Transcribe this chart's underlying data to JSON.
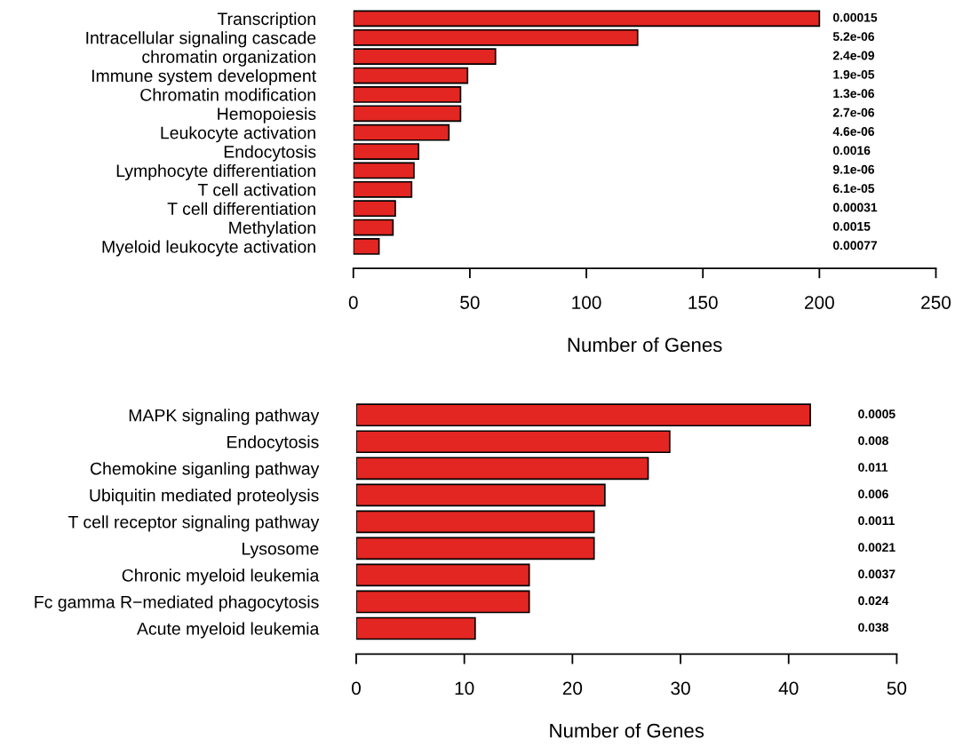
{
  "chart_data": [
    {
      "type": "bar",
      "orientation": "horizontal",
      "xlabel": "Number of Genes",
      "categories": [
        "Transcription",
        "Intracellular signaling cascade",
        "chromatin organization",
        "Immune system development",
        "Chromatin modification",
        "Hemopoiesis",
        "Leukocyte activation",
        "Endocytosis",
        "Lymphocyte differentiation",
        "T cell activation",
        "T cell differentiation",
        "Methylation",
        "Myeloid leukocyte activation"
      ],
      "values": [
        200,
        122,
        61,
        49,
        46,
        46,
        41,
        28,
        26,
        25,
        18,
        17,
        11
      ],
      "color": "#e32622",
      "xlim": [
        0,
        250
      ],
      "xticks": [
        0,
        50,
        100,
        150,
        200,
        250
      ],
      "annotations": [
        "0.00015",
        "5.2e-06",
        "2.4e-09",
        "1.9e-05",
        "1.3e-06",
        "2.7e-06",
        "4.6e-06",
        "0.0016",
        "9.1e-06",
        "6.1e-05",
        "0.00031",
        "0.0015",
        "0.00077"
      ]
    },
    {
      "type": "bar",
      "orientation": "horizontal",
      "xlabel": "Number of Genes",
      "categories": [
        "MAPK signaling pathway",
        "Endocytosis",
        "Chemokine siganling pathway",
        "Ubiquitin mediated proteolysis",
        "T cell receptor signaling pathway",
        "Lysosome",
        "Chronic myeloid leukemia",
        "Fc gamma R−mediated phagocytosis",
        "Acute myeloid leukemia"
      ],
      "values": [
        42,
        29,
        27,
        23,
        22,
        22,
        16,
        16,
        11
      ],
      "color": "#e32622",
      "xlim": [
        0,
        50
      ],
      "xticks": [
        0,
        10,
        20,
        30,
        40,
        50
      ],
      "annotations": [
        "0.0005",
        "0.008",
        "0.011",
        "0.006",
        "0.0011",
        "0.0021",
        "0.0037",
        "0.024",
        "0.038"
      ]
    }
  ]
}
